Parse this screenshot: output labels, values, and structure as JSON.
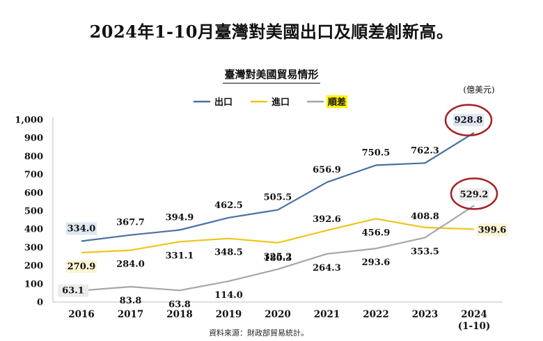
{
  "headline": "2024年1-10月臺灣對美國出口及順差創新高。",
  "source": "資料來源：財政部貿易統計。",
  "chart_data": {
    "type": "line",
    "title": "臺灣對美國貿易情形",
    "unit": "(億美元)",
    "categories": [
      "2016",
      "2017",
      "2018",
      "2019",
      "2020",
      "2021",
      "2022",
      "2023",
      "2024\n(1-10)"
    ],
    "ylim": [
      0,
      1000
    ],
    "yticks": [
      0,
      100,
      200,
      300,
      400,
      500,
      600,
      700,
      800,
      900,
      1000
    ],
    "ytick_labels": [
      "0",
      "100",
      "200",
      "300",
      "400",
      "500",
      "600",
      "700",
      "800",
      "900",
      "1,000"
    ],
    "grid": false,
    "legend": "top-center",
    "series": [
      {
        "name": "出口",
        "color": "#4a6fa5",
        "values": [
          334.0,
          367.7,
          394.9,
          462.5,
          505.5,
          656.9,
          750.5,
          762.3,
          928.8
        ],
        "labels": [
          "334.0",
          "367.7",
          "394.9",
          "462.5",
          "505.5",
          "656.9",
          "750.5",
          "762.3",
          "928.8"
        ]
      },
      {
        "name": "進口",
        "color": "#f0c419",
        "values": [
          270.9,
          284.0,
          331.1,
          348.5,
          325.2,
          392.6,
          456.9,
          408.8,
          399.6
        ],
        "labels": [
          "270.9",
          "284.0",
          "331.1",
          "348.5",
          "325.2",
          "392.6",
          "456.9",
          "408.8",
          "399.6"
        ]
      },
      {
        "name": "順差",
        "color": "#a6a6a6",
        "values": [
          63.1,
          83.8,
          63.8,
          114.0,
          180.3,
          264.3,
          293.6,
          353.5,
          529.2
        ],
        "labels": [
          "63.1",
          "83.8",
          "63.8",
          "114.0",
          "180.3",
          "264.3",
          "293.6",
          "353.5",
          "529.2"
        ]
      }
    ],
    "highlight_color": "#a31f24"
  }
}
